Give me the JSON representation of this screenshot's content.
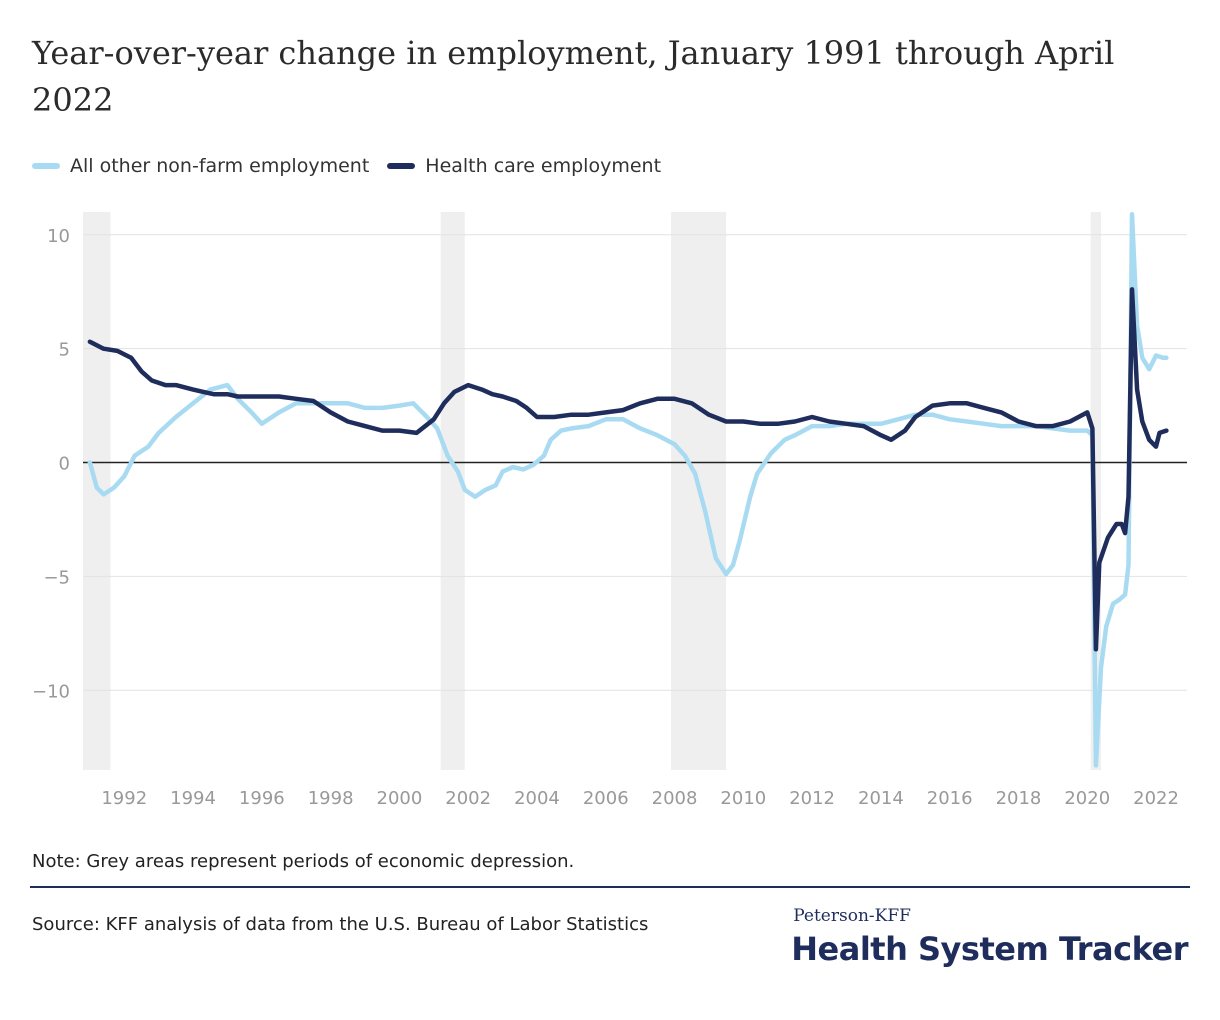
{
  "title": "Year-over-year change in employment, January 1991 through April 2022",
  "legend": [
    {
      "label": "All other non-farm employment",
      "color": "#a8dbf2"
    },
    {
      "label": "Health care employment",
      "color": "#1f2d5c"
    }
  ],
  "note": "Note: Grey areas represent periods of economic depression.",
  "source": "Source: KFF analysis of data from the U.S. Bureau of Labor Statistics",
  "brand": {
    "small": "Peterson-KFF",
    "big": "Health System Tracker"
  },
  "chart_data": {
    "type": "line",
    "title": "Year-over-year change in employment, January 1991 through April 2022",
    "xlabel": "",
    "ylabel": "",
    "xlim": [
      1990.8,
      2022.9
    ],
    "ylim": [
      -13.5,
      11
    ],
    "yticks": [
      {
        "value": 10,
        "label": "10"
      },
      {
        "value": 5,
        "label": "5"
      },
      {
        "value": 0,
        "label": "0"
      },
      {
        "value": -5,
        "label": "−5"
      },
      {
        "value": -10,
        "label": "−10"
      }
    ],
    "xticks": [
      {
        "value": 1992,
        "label": "1992"
      },
      {
        "value": 1994,
        "label": "1994"
      },
      {
        "value": 1996,
        "label": "1996"
      },
      {
        "value": 1998,
        "label": "1998"
      },
      {
        "value": 2000,
        "label": "2000"
      },
      {
        "value": 2002,
        "label": "2002"
      },
      {
        "value": 2004,
        "label": "2004"
      },
      {
        "value": 2006,
        "label": "2006"
      },
      {
        "value": 2008,
        "label": "2008"
      },
      {
        "value": 2010,
        "label": "2010"
      },
      {
        "value": 2012,
        "label": "2012"
      },
      {
        "value": 2014,
        "label": "2014"
      },
      {
        "value": 2016,
        "label": "2016"
      },
      {
        "value": 2018,
        "label": "2018"
      },
      {
        "value": 2020,
        "label": "2020"
      },
      {
        "value": 2022,
        "label": "2022"
      }
    ],
    "recessions": [
      [
        1990.8,
        1991.6
      ],
      [
        2001.2,
        2001.9
      ],
      [
        2007.9,
        2009.5
      ],
      [
        2020.1,
        2020.4
      ]
    ],
    "grid": true,
    "legend_position": "top-left",
    "series": [
      {
        "name": "All other non-farm employment",
        "color": "#a8dbf2",
        "points": [
          [
            1991.0,
            0.0
          ],
          [
            1991.2,
            -1.1
          ],
          [
            1991.4,
            -1.4
          ],
          [
            1991.7,
            -1.1
          ],
          [
            1992.0,
            -0.6
          ],
          [
            1992.3,
            0.3
          ],
          [
            1992.7,
            0.7
          ],
          [
            1993.0,
            1.3
          ],
          [
            1993.5,
            2.0
          ],
          [
            1994.0,
            2.6
          ],
          [
            1994.5,
            3.2
          ],
          [
            1995.0,
            3.4
          ],
          [
            1995.3,
            2.8
          ],
          [
            1995.7,
            2.2
          ],
          [
            1996.0,
            1.7
          ],
          [
            1996.5,
            2.2
          ],
          [
            1997.0,
            2.6
          ],
          [
            1997.5,
            2.6
          ],
          [
            1998.0,
            2.6
          ],
          [
            1998.5,
            2.6
          ],
          [
            1999.0,
            2.4
          ],
          [
            1999.5,
            2.4
          ],
          [
            2000.0,
            2.5
          ],
          [
            2000.4,
            2.6
          ],
          [
            2000.8,
            2.0
          ],
          [
            2001.1,
            1.5
          ],
          [
            2001.4,
            0.3
          ],
          [
            2001.7,
            -0.4
          ],
          [
            2001.9,
            -1.2
          ],
          [
            2002.2,
            -1.5
          ],
          [
            2002.5,
            -1.2
          ],
          [
            2002.8,
            -1.0
          ],
          [
            2003.0,
            -0.4
          ],
          [
            2003.3,
            -0.2
          ],
          [
            2003.6,
            -0.3
          ],
          [
            2003.9,
            -0.1
          ],
          [
            2004.2,
            0.3
          ],
          [
            2004.4,
            1.0
          ],
          [
            2004.7,
            1.4
          ],
          [
            2005.0,
            1.5
          ],
          [
            2005.5,
            1.6
          ],
          [
            2006.0,
            1.9
          ],
          [
            2006.5,
            1.9
          ],
          [
            2007.0,
            1.5
          ],
          [
            2007.5,
            1.2
          ],
          [
            2008.0,
            0.8
          ],
          [
            2008.3,
            0.3
          ],
          [
            2008.6,
            -0.5
          ],
          [
            2008.9,
            -2.2
          ],
          [
            2009.2,
            -4.2
          ],
          [
            2009.5,
            -4.9
          ],
          [
            2009.7,
            -4.5
          ],
          [
            2009.9,
            -3.4
          ],
          [
            2010.2,
            -1.5
          ],
          [
            2010.4,
            -0.5
          ],
          [
            2010.8,
            0.4
          ],
          [
            2011.2,
            1.0
          ],
          [
            2011.5,
            1.2
          ],
          [
            2012.0,
            1.6
          ],
          [
            2012.5,
            1.6
          ],
          [
            2013.0,
            1.7
          ],
          [
            2013.5,
            1.7
          ],
          [
            2014.0,
            1.7
          ],
          [
            2014.5,
            1.9
          ],
          [
            2015.0,
            2.1
          ],
          [
            2015.5,
            2.1
          ],
          [
            2016.0,
            1.9
          ],
          [
            2016.5,
            1.8
          ],
          [
            2017.0,
            1.7
          ],
          [
            2017.5,
            1.6
          ],
          [
            2018.0,
            1.6
          ],
          [
            2018.5,
            1.6
          ],
          [
            2019.0,
            1.5
          ],
          [
            2019.5,
            1.4
          ],
          [
            2020.0,
            1.4
          ],
          [
            2020.15,
            1.2
          ],
          [
            2020.25,
            -13.3
          ],
          [
            2020.4,
            -9.0
          ],
          [
            2020.55,
            -7.2
          ],
          [
            2020.75,
            -6.2
          ],
          [
            2020.95,
            -6.0
          ],
          [
            2021.1,
            -5.8
          ],
          [
            2021.2,
            -4.5
          ],
          [
            2021.3,
            10.9
          ],
          [
            2021.45,
            6.0
          ],
          [
            2021.6,
            4.6
          ],
          [
            2021.8,
            4.1
          ],
          [
            2022.0,
            4.7
          ],
          [
            2022.2,
            4.6
          ],
          [
            2022.3,
            4.6
          ]
        ]
      },
      {
        "name": "Health care employment",
        "color": "#1f2d5c",
        "points": [
          [
            1991.0,
            5.3
          ],
          [
            1991.4,
            5.0
          ],
          [
            1991.8,
            4.9
          ],
          [
            1992.2,
            4.6
          ],
          [
            1992.5,
            4.0
          ],
          [
            1992.8,
            3.6
          ],
          [
            1993.2,
            3.4
          ],
          [
            1993.5,
            3.4
          ],
          [
            1994.0,
            3.2
          ],
          [
            1994.3,
            3.1
          ],
          [
            1994.6,
            3.0
          ],
          [
            1995.0,
            3.0
          ],
          [
            1995.3,
            2.9
          ],
          [
            1995.7,
            2.9
          ],
          [
            1996.0,
            2.9
          ],
          [
            1996.5,
            2.9
          ],
          [
            1997.0,
            2.8
          ],
          [
            1997.5,
            2.7
          ],
          [
            1998.0,
            2.2
          ],
          [
            1998.5,
            1.8
          ],
          [
            1999.0,
            1.6
          ],
          [
            1999.5,
            1.4
          ],
          [
            2000.0,
            1.4
          ],
          [
            2000.5,
            1.3
          ],
          [
            2001.0,
            1.9
          ],
          [
            2001.3,
            2.6
          ],
          [
            2001.6,
            3.1
          ],
          [
            2002.0,
            3.4
          ],
          [
            2002.4,
            3.2
          ],
          [
            2002.7,
            3.0
          ],
          [
            2003.0,
            2.9
          ],
          [
            2003.4,
            2.7
          ],
          [
            2003.7,
            2.4
          ],
          [
            2004.0,
            2.0
          ],
          [
            2004.5,
            2.0
          ],
          [
            2005.0,
            2.1
          ],
          [
            2005.5,
            2.1
          ],
          [
            2006.0,
            2.2
          ],
          [
            2006.5,
            2.3
          ],
          [
            2007.0,
            2.6
          ],
          [
            2007.5,
            2.8
          ],
          [
            2008.0,
            2.8
          ],
          [
            2008.5,
            2.6
          ],
          [
            2009.0,
            2.1
          ],
          [
            2009.5,
            1.8
          ],
          [
            2010.0,
            1.8
          ],
          [
            2010.5,
            1.7
          ],
          [
            2011.0,
            1.7
          ],
          [
            2011.5,
            1.8
          ],
          [
            2012.0,
            2.0
          ],
          [
            2012.5,
            1.8
          ],
          [
            2013.0,
            1.7
          ],
          [
            2013.5,
            1.6
          ],
          [
            2014.0,
            1.2
          ],
          [
            2014.3,
            1.0
          ],
          [
            2014.7,
            1.4
          ],
          [
            2015.0,
            2.0
          ],
          [
            2015.5,
            2.5
          ],
          [
            2016.0,
            2.6
          ],
          [
            2016.5,
            2.6
          ],
          [
            2017.0,
            2.4
          ],
          [
            2017.5,
            2.2
          ],
          [
            2018.0,
            1.8
          ],
          [
            2018.5,
            1.6
          ],
          [
            2019.0,
            1.6
          ],
          [
            2019.5,
            1.8
          ],
          [
            2020.0,
            2.2
          ],
          [
            2020.15,
            1.5
          ],
          [
            2020.25,
            -8.2
          ],
          [
            2020.35,
            -4.4
          ],
          [
            2020.6,
            -3.3
          ],
          [
            2020.85,
            -2.7
          ],
          [
            2021.0,
            -2.7
          ],
          [
            2021.1,
            -3.1
          ],
          [
            2021.2,
            -1.5
          ],
          [
            2021.3,
            7.6
          ],
          [
            2021.45,
            3.2
          ],
          [
            2021.6,
            1.8
          ],
          [
            2021.8,
            1.0
          ],
          [
            2022.0,
            0.7
          ],
          [
            2022.1,
            1.3
          ],
          [
            2022.3,
            1.4
          ]
        ]
      }
    ]
  }
}
